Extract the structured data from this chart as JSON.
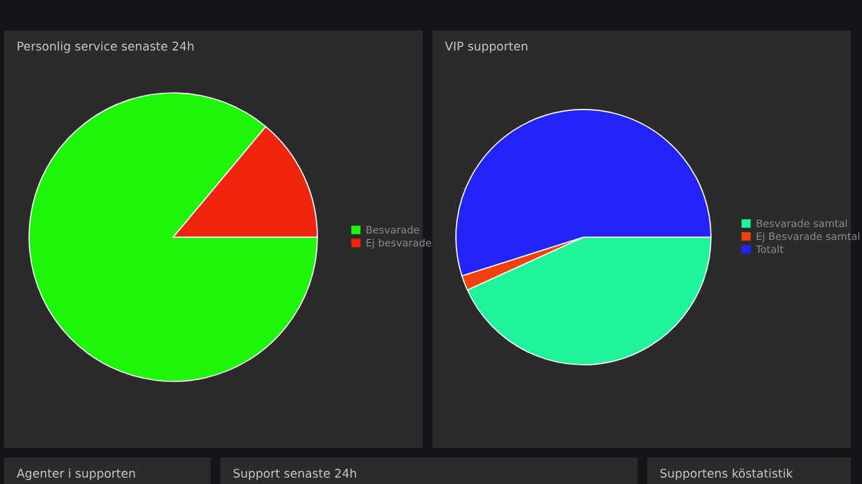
{
  "chart_data": [
    {
      "type": "pie",
      "title": "Personlig service senaste 24h",
      "categories": [
        "Besvarade",
        "Ej besvarade"
      ],
      "values": [
        86.1,
        13.9
      ],
      "colors": [
        "#1ef70a",
        "#ef250e"
      ],
      "legend": "right"
    },
    {
      "type": "pie",
      "title": "VIP supporten",
      "categories": [
        "Besvarade samtal",
        "Ej Besvarade samtal",
        "Totalt"
      ],
      "values": [
        43.2,
        1.9,
        54.9
      ],
      "colors": [
        "#1ef59a",
        "#f0420e",
        "#2323fa"
      ],
      "legend": "right"
    },
    {
      "type": "other",
      "title": "Agenter i supporten"
    },
    {
      "type": "other",
      "title": "Support senaste 24h"
    },
    {
      "type": "other",
      "title": "Supportens köstatistik"
    }
  ]
}
